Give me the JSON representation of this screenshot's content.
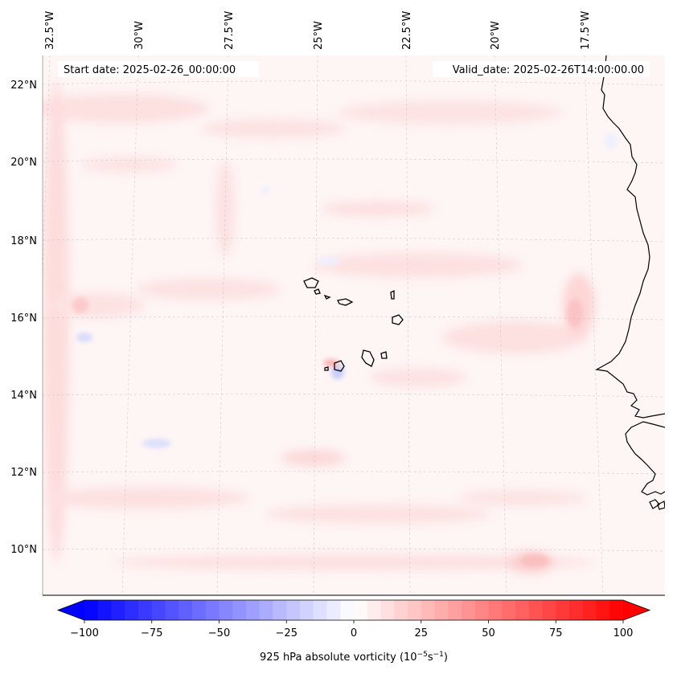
{
  "header": {
    "start_date": "Start date: 2025-02-26_00:00:00",
    "valid_date": "Valid_date: 2025-02-26T14:00:00.00"
  },
  "lon_labels": [
    "32.5°W",
    "30°W",
    "27.5°W",
    "25°W",
    "22.5°W",
    "20°W",
    "17.5°W"
  ],
  "lat_labels": [
    "22°N",
    "20°N",
    "18°N",
    "16°N",
    "14°N",
    "12°N",
    "10°N"
  ],
  "colorbar": {
    "min": -100,
    "max": 100,
    "tick_values": [
      -100,
      -75,
      -50,
      -25,
      0,
      25,
      50,
      75,
      100
    ],
    "tick_labels": [
      "−100",
      "−75",
      "−50",
      "−25",
      "0",
      "25",
      "50",
      "75",
      "100"
    ],
    "label_prefix": "925 hPa absolute vorticity (10",
    "label_exp1": "−5",
    "label_mid": "s",
    "label_exp2": "−1",
    "label_suffix": ")",
    "colors": {
      "negative": "#0000ff",
      "zero": "#ffffff",
      "positive": "#ff0000"
    },
    "extend": "both"
  },
  "map": {
    "field": "925 hPa absolute vorticity",
    "background_tint": "#fef4f4",
    "gridlines": true,
    "coastline_color": "#000000"
  }
}
